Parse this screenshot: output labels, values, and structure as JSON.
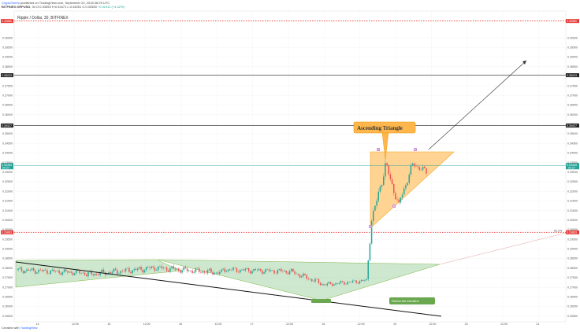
{
  "header": {
    "author": "CryptoTorres",
    "published": "published on TradingView.com, September 20, 2018 08:29 UTC",
    "symbol": "BITFINEX:XRPUSD",
    "interval": "30",
    "ohlc": "O:0.33353 H:0.33471 L:0.33051 C:0.33353",
    "change": "+0.01411 (+4.42%)"
  },
  "chart_title": "Ripple / Dollar, 30, BITFINEX",
  "footer": {
    "created": "Created with",
    "brand": "TradingView"
  },
  "colors": {
    "accent": "#2962ff",
    "triangle_fill": "#ffcc80",
    "triangle_stroke": "#f5a623",
    "green_pattern": "#a5d6a7",
    "green_label": "#6aa84f",
    "red_level": "#e53935",
    "current_price": "#26a69a",
    "up_candle": "#26a69a",
    "down_candle": "#ef5350"
  },
  "chart_data": {
    "type": "candlestick",
    "price_range": [
      0.252,
      0.414
    ],
    "y_ticks": [
      "0.40000",
      "0.39500",
      "0.39000",
      "0.38500",
      "0.38000",
      "0.37500",
      "0.37000",
      "0.36500",
      "0.36000",
      "0.35500",
      "0.35000",
      "0.34500",
      "0.34000",
      "0.33500",
      "0.33000",
      "0.32500",
      "0.32000",
      "0.31500",
      "0.31000",
      "0.30500",
      "0.30000",
      "0.29500",
      "0.29000",
      "0.28500",
      "0.28000",
      "0.27500",
      "0.27000",
      "0.26500",
      "0.26000",
      "0.25500"
    ],
    "x_ticks": [
      "14",
      "12:00",
      "15",
      "12:00",
      "16",
      "12:00",
      "17",
      "12:00",
      "18",
      "12:00",
      "19",
      "12:00",
      "20",
      "12:00",
      "21"
    ],
    "levels": [
      {
        "price": 0.4088,
        "label": "0.40880",
        "style": "dotted",
        "color": "red"
      },
      {
        "price": 0.38053,
        "label": "0.38053",
        "style": "solid",
        "color": "black"
      },
      {
        "price": 0.35427,
        "label": "0.35427",
        "style": "solid",
        "color": "black"
      },
      {
        "price": 0.29863,
        "label": "0.29863",
        "style": "dotted",
        "color": "red"
      }
    ],
    "current_price": {
      "price": 0.33353,
      "label": "0.33353",
      "countdown": "00:27"
    },
    "level_right_label": "50.2%",
    "annotations": [
      {
        "text": "Ascending Triangle",
        "type": "callout"
      },
      {
        "text": "Retest the trendline",
        "type": "label"
      }
    ],
    "marker_labels": [
      "C",
      "D",
      "E",
      "F"
    ],
    "candles_summary": {
      "range_start_price": 0.279,
      "breakout_from": 0.273,
      "breakout_to": 0.305,
      "triangle_top": 0.3345,
      "triangle_low": 0.305
    }
  }
}
